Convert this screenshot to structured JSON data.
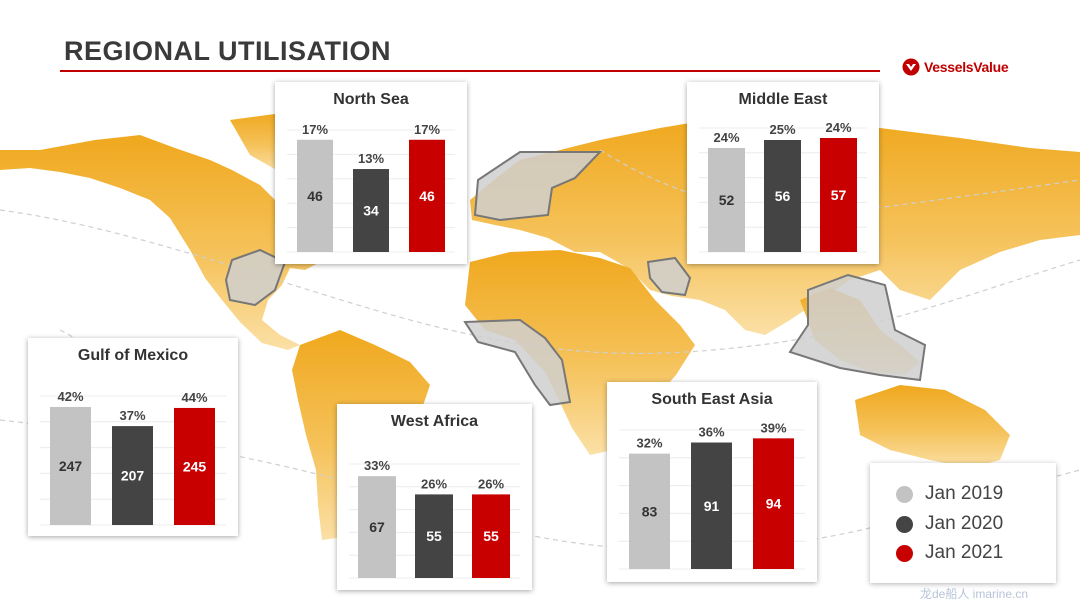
{
  "header": {
    "title": "REGIONAL UTILISATION",
    "brand": "VesselsValue"
  },
  "colors": {
    "jan_2019": "#c3c3c3",
    "jan_2020": "#444444",
    "jan_2021": "#c80000",
    "map_land": "#f2b53a",
    "region_highlight": "#cfcfcf"
  },
  "legend": {
    "items": [
      {
        "label": "Jan 2019",
        "color": "#c3c3c3"
      },
      {
        "label": "Jan 2020",
        "color": "#444444"
      },
      {
        "label": "Jan 2021",
        "color": "#c80000"
      }
    ]
  },
  "chart_data": [
    {
      "type": "bar",
      "title": "North Sea",
      "categories": [
        "Jan 2019",
        "Jan 2020",
        "Jan 2021"
      ],
      "values": [
        46,
        34,
        46
      ],
      "percent_labels": [
        "17%",
        "13%",
        "17%"
      ],
      "ylim": [
        0,
        50
      ]
    },
    {
      "type": "bar",
      "title": "Middle East",
      "categories": [
        "Jan 2019",
        "Jan 2020",
        "Jan 2021"
      ],
      "values": [
        52,
        56,
        57
      ],
      "percent_labels": [
        "24%",
        "25%",
        "24%"
      ],
      "ylim": [
        0,
        62
      ]
    },
    {
      "type": "bar",
      "title": "Gulf of Mexico",
      "categories": [
        "Jan 2019",
        "Jan 2020",
        "Jan 2021"
      ],
      "values": [
        247,
        207,
        245
      ],
      "percent_labels": [
        "42%",
        "37%",
        "44%"
      ],
      "ylim": [
        0,
        270
      ]
    },
    {
      "type": "bar",
      "title": "West Africa",
      "categories": [
        "Jan 2019",
        "Jan 2020",
        "Jan 2021"
      ],
      "values": [
        67,
        55,
        55
      ],
      "percent_labels": [
        "33%",
        "26%",
        "26%"
      ],
      "ylim": [
        0,
        75
      ]
    },
    {
      "type": "bar",
      "title": "South East Asia",
      "categories": [
        "Jan 2019",
        "Jan 2020",
        "Jan 2021"
      ],
      "values": [
        83,
        91,
        94
      ],
      "percent_labels": [
        "32%",
        "36%",
        "39%"
      ],
      "ylim": [
        0,
        100
      ]
    }
  ],
  "watermark": "龙de船人 imarine.cn"
}
